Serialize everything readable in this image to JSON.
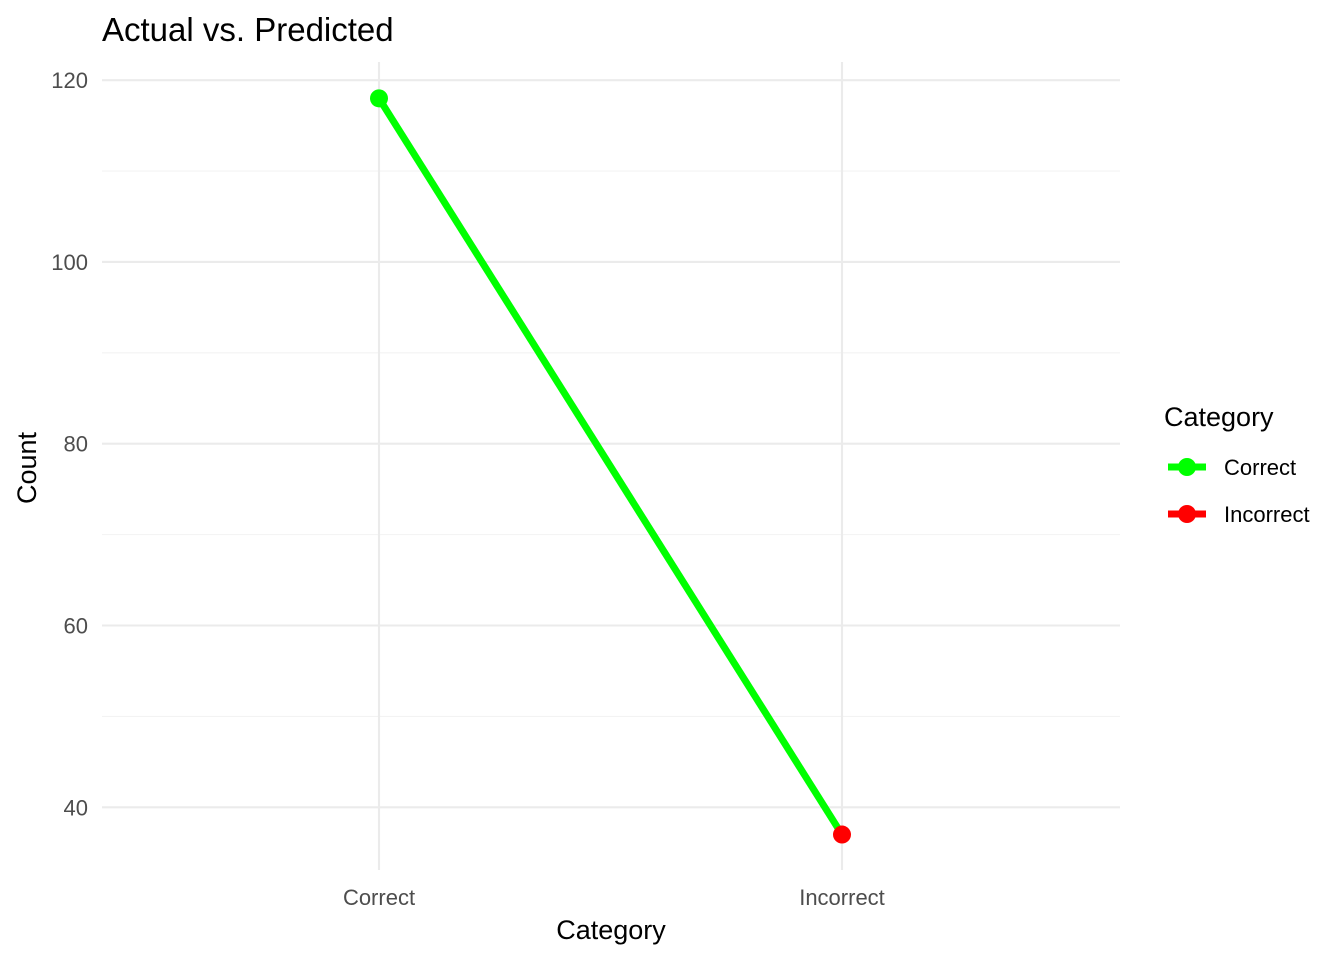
{
  "chart_data": {
    "type": "line",
    "title": "Actual vs. Predicted",
    "xlabel": "Category",
    "ylabel": "Count",
    "categories": [
      "Correct",
      "Incorrect"
    ],
    "values": [
      118,
      37
    ],
    "point_categories": [
      "Correct",
      "Incorrect"
    ],
    "line_category": "Correct",
    "ylim": [
      33.1,
      122.0
    ],
    "y_major_ticks": [
      40,
      60,
      80,
      100,
      120
    ],
    "y_minor_ticks": [
      50,
      70,
      90,
      110
    ],
    "grid": true,
    "legend": {
      "title": "Category",
      "position": "right",
      "entries": [
        {
          "label": "Correct",
          "color": "#00ff00"
        },
        {
          "label": "Incorrect",
          "color": "#ff0000"
        }
      ]
    },
    "colors": {
      "Correct": "#00ff00",
      "Incorrect": "#ff0000"
    }
  }
}
